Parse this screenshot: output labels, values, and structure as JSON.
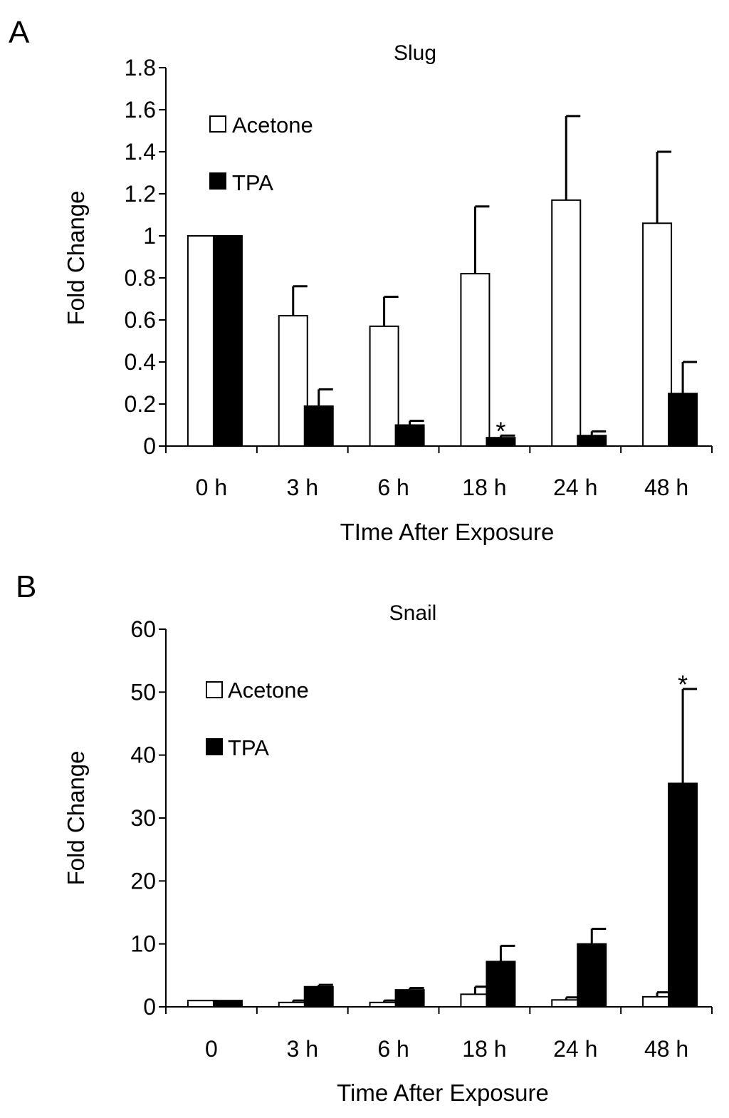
{
  "chart_data": [
    {
      "panel": "A",
      "type": "bar",
      "title": "Slug",
      "xlabel": "TIme After Exposure",
      "ylabel": "Fold Change",
      "categories": [
        "0 h",
        "3 h",
        "6 h",
        "18 h",
        "24 h",
        "48 h"
      ],
      "ylim": [
        0,
        1.8
      ],
      "yticks": [
        "0",
        "0.2",
        "0.4",
        "0.6",
        "0.8",
        "1",
        "1.2",
        "1.4",
        "1.6",
        "1.8"
      ],
      "legend_position": "top-left",
      "series": [
        {
          "name": "Acetone",
          "fill": "#ffffff",
          "values": [
            1.0,
            0.62,
            0.57,
            0.82,
            1.17,
            1.06
          ],
          "errors": [
            0,
            0.14,
            0.14,
            0.32,
            0.4,
            0.34
          ]
        },
        {
          "name": "TPA",
          "fill": "#000000",
          "values": [
            1.0,
            0.19,
            0.1,
            0.04,
            0.05,
            0.25
          ],
          "errors": [
            0,
            0.08,
            0.02,
            0.01,
            0.02,
            0.15
          ]
        }
      ],
      "annotations": [
        {
          "text": "*",
          "category": "18 h",
          "series": "TPA"
        }
      ]
    },
    {
      "panel": "B",
      "type": "bar",
      "title": "Snail",
      "xlabel": "Time After Exposure",
      "ylabel": "Fold Change",
      "categories": [
        "0",
        "3 h",
        "6 h",
        "18 h",
        "24 h",
        "48 h"
      ],
      "ylim": [
        0,
        60
      ],
      "yticks": [
        "0",
        "10",
        "20",
        "30",
        "40",
        "50",
        "60"
      ],
      "legend_position": "top-left",
      "series": [
        {
          "name": "Acetone",
          "fill": "#ffffff",
          "values": [
            1.0,
            0.7,
            0.7,
            2.0,
            1.1,
            1.6
          ],
          "errors": [
            0,
            0.3,
            0.3,
            1.2,
            0.4,
            0.7
          ]
        },
        {
          "name": "TPA",
          "fill": "#000000",
          "values": [
            1.0,
            3.2,
            2.7,
            7.2,
            10.0,
            35.5
          ],
          "errors": [
            0,
            0.3,
            0.3,
            2.5,
            2.4,
            15.0
          ]
        }
      ],
      "annotations": [
        {
          "text": "*",
          "category": "48 h",
          "series": "TPA"
        }
      ]
    }
  ]
}
